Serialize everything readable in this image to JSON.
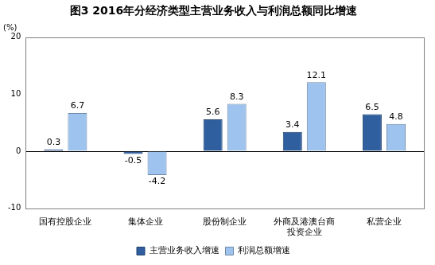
{
  "chart_data": {
    "type": "bar",
    "title": "图3 2016年分经济类型主营业务收入与利润总额同比增速",
    "y_label": "(%)",
    "categories": [
      "国有控股企业",
      "集体企业",
      "股份制企业",
      "外商及港澳台商投资企业",
      "私营企业"
    ],
    "series": [
      {
        "name": "主营业务收入增速",
        "color": "#2f5f9e",
        "values": [
          0.3,
          -0.5,
          5.6,
          3.4,
          6.5
        ]
      },
      {
        "name": "利润总额增速",
        "color": "#9dc3ee",
        "values": [
          6.7,
          -4.2,
          8.3,
          12.1,
          4.8
        ]
      }
    ],
    "ylim": [
      -10,
      20
    ],
    "yticks": [
      -10,
      0,
      10,
      20
    ],
    "grid": false,
    "legend": "bottom",
    "data_labels": true
  }
}
